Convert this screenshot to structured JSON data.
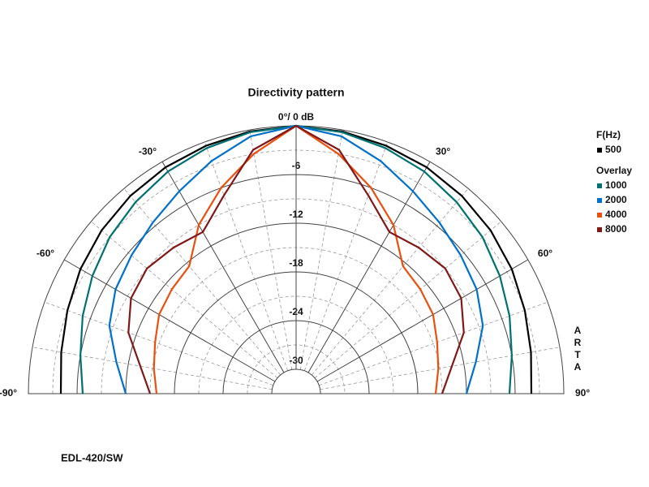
{
  "chart_data": {
    "type": "polar",
    "title": "Directivity pattern",
    "footer": "EDL-420/SW",
    "watermark": "ARTA",
    "legend": {
      "title": "F(Hz)",
      "overlay_title": "Overlay"
    },
    "rlim": [
      -33,
      0
    ],
    "rticks": [
      -6,
      -12,
      -18,
      -24,
      -30
    ],
    "thetalim": [
      -90,
      90
    ],
    "thetaticks": [
      {
        "value": -90,
        "label": "-90°"
      },
      {
        "value": -60,
        "label": "-60°"
      },
      {
        "value": -30,
        "label": "-30°"
      },
      {
        "value": 0,
        "label": "0°/ 0 dB"
      },
      {
        "value": 30,
        "label": "30°"
      },
      {
        "value": 60,
        "label": "60°"
      },
      {
        "value": 90,
        "label": "90°"
      }
    ],
    "x": [
      -90,
      -80,
      -70,
      -60,
      -50,
      -40,
      -30,
      -20,
      -10,
      0,
      10,
      20,
      30,
      40,
      50,
      60,
      70,
      80,
      90
    ],
    "series": [
      {
        "name": "500",
        "color": "#000000",
        "values": [
          -4,
          -3.6,
          -3,
          -2.3,
          -1.7,
          -1.2,
          -0.8,
          -0.5,
          -0.2,
          0,
          -0.2,
          -0.5,
          -0.8,
          -1.2,
          -1.7,
          -2.3,
          -3,
          -3.6,
          -4
        ]
      },
      {
        "name": "1000",
        "color": "#007070",
        "values": [
          -6.7,
          -6,
          -5,
          -4,
          -3,
          -2.2,
          -1.4,
          -0.8,
          -0.3,
          0,
          -0.3,
          -0.8,
          -1.4,
          -2.2,
          -3,
          -4,
          -5,
          -6,
          -6.7
        ]
      },
      {
        "name": "2000",
        "color": "#0070c8",
        "values": [
          -12,
          -10.5,
          -8.5,
          -7.3,
          -6.5,
          -5.5,
          -4.2,
          -2.5,
          -0.8,
          0,
          -0.8,
          -2.5,
          -4.2,
          -5.5,
          -6.5,
          -7.3,
          -8.5,
          -10.5,
          -12
        ]
      },
      {
        "name": "4000",
        "color": "#e85010",
        "values": [
          -15.8,
          -15.2,
          -14.5,
          -13.5,
          -13,
          -12.5,
          -9,
          -6,
          -3,
          0,
          -3,
          -6,
          -9,
          -12.5,
          -13,
          -13.5,
          -14.5,
          -15.2,
          -15.8
        ]
      },
      {
        "name": "8000",
        "color": "#801818",
        "values": [
          -15,
          -13.5,
          -11,
          -9.5,
          -9,
          -9.5,
          -10,
          -7,
          -2.5,
          0,
          -2.5,
          -7,
          -10,
          -9.5,
          -9,
          -9.5,
          -11,
          -13.5,
          -15
        ]
      }
    ]
  }
}
